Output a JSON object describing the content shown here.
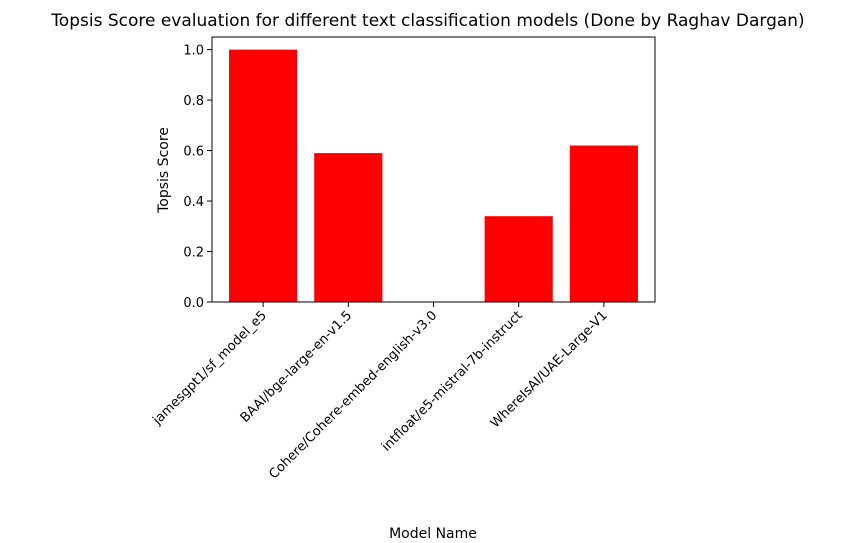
{
  "chart_data": {
    "type": "bar",
    "title": "Topsis Score evaluation for different text classification models (Done by Raghav Dargan)",
    "xlabel": "Model Name",
    "ylabel": "Topsis Score",
    "categories": [
      "jamesgpt1/sf_model_e5",
      "BAAI/bge-large-en-v1.5",
      "Cohere/Cohere-embed-english-v3.0",
      "intfloat/e5-mistral-7b-instruct",
      "WhereIsAI/UAE-Large-V1"
    ],
    "values": [
      1.0,
      0.59,
      0.0,
      0.34,
      0.62
    ],
    "ylim": [
      0,
      1.05
    ],
    "yticks": [
      "0.0",
      "0.2",
      "0.4",
      "0.6",
      "0.8",
      "1.0"
    ],
    "bar_color": "#ff0000",
    "grid": false,
    "legend": null
  }
}
